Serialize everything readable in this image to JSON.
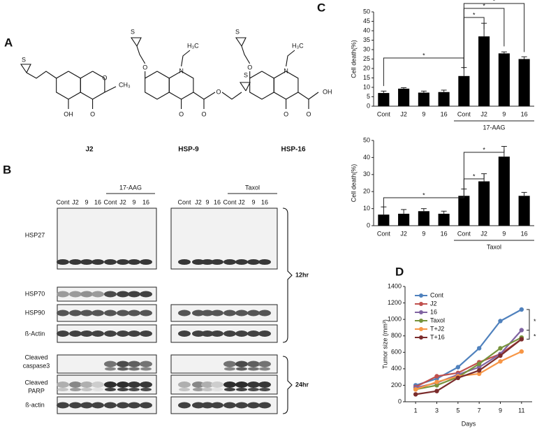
{
  "panels": {
    "A": {
      "label": "A",
      "compounds": [
        {
          "name": "J2",
          "atoms": [
            "S",
            "OH",
            "O",
            "O",
            "CH₃"
          ]
        },
        {
          "name": "HSP-9",
          "atoms": [
            "S",
            "O",
            "N",
            "H₃C",
            "O",
            "O",
            "O",
            "S"
          ]
        },
        {
          "name": "HSP-16",
          "atoms": [
            "S",
            "O",
            "N",
            "H₃C",
            "O",
            "O",
            "OH"
          ]
        }
      ]
    },
    "B": {
      "label": "B",
      "lanes": [
        "Cont",
        "J2",
        "9",
        "16",
        "Cont",
        "J2",
        "9",
        "16"
      ],
      "treatments": [
        "17-AAG",
        "Taxol"
      ],
      "rows": [
        "HSP27",
        "HSP70",
        "HSP90",
        "ß-Actin",
        [
          "Cleaved",
          "caspase3"
        ],
        [
          "Cleaved",
          "PARP"
        ],
        "ß-actin"
      ],
      "times": [
        "12hr",
        "24hr"
      ]
    },
    "C": {
      "label": "C"
    },
    "D": {
      "label": "D"
    }
  },
  "chart_data": [
    {
      "type": "bar",
      "ylabel": "Cell death(%)",
      "categories": [
        "Cont",
        "J2",
        "9",
        "16",
        "Cont",
        "J2",
        "9",
        "16"
      ],
      "values": [
        7,
        9.3,
        7.2,
        7.5,
        16,
        37,
        28,
        25
      ],
      "errors": [
        1,
        0.5,
        0.8,
        1,
        4.5,
        7,
        0.8,
        1.2
      ],
      "group_label": "17-AAG",
      "annotations": [
        "*",
        "*",
        "*",
        "*"
      ],
      "color": "#000000",
      "ylim": [
        0,
        50
      ],
      "yticks": [
        0,
        5,
        10,
        15,
        20,
        25,
        30,
        35,
        40,
        45,
        50
      ]
    },
    {
      "type": "bar",
      "ylabel": "Cell death(%)",
      "categories": [
        "Cont",
        "J2",
        "9",
        "16",
        "Cont",
        "J2",
        "9",
        "16"
      ],
      "values": [
        6.5,
        7,
        8.5,
        7,
        17.5,
        26,
        40.5,
        17.5
      ],
      "errors": [
        4.5,
        2.5,
        1.5,
        1.5,
        4,
        4.5,
        6,
        2
      ],
      "group_label": "Taxol",
      "annotations": [
        "*",
        "*",
        "*"
      ],
      "color": "#000000",
      "ylim": [
        0,
        50
      ],
      "yticks": [
        0,
        10,
        20,
        30,
        40,
        50
      ]
    },
    {
      "type": "line",
      "xlabel": "Days",
      "ylabel": "Tumor size (mm³)",
      "x": [
        1,
        3,
        5,
        7,
        9,
        11
      ],
      "xlim": [
        0,
        12
      ],
      "xticks": [
        1,
        3,
        5,
        7,
        9,
        11
      ],
      "ylim": [
        0,
        1400
      ],
      "yticks": [
        0,
        200,
        400,
        600,
        800,
        1000,
        1200,
        1400
      ],
      "legend": "upper left",
      "annotations": [
        "*",
        "*"
      ],
      "series": [
        {
          "name": "Cont",
          "color": "#4f81bd",
          "values": [
            200,
            280,
            420,
            650,
            980,
            1120
          ]
        },
        {
          "name": "J2",
          "color": "#c0504d",
          "values": [
            180,
            310,
            350,
            480,
            580,
            760
          ]
        },
        {
          "name": "16",
          "color": "#8064a2",
          "values": [
            170,
            230,
            330,
            420,
            580,
            870
          ]
        },
        {
          "name": "Taxol",
          "color": "#77933c",
          "values": [
            150,
            200,
            300,
            460,
            650,
            780
          ]
        },
        {
          "name": "T+J2",
          "color": "#f79646",
          "values": [
            150,
            240,
            310,
            340,
            490,
            610
          ]
        },
        {
          "name": "T+16",
          "color": "#7b2c2c",
          "values": [
            90,
            130,
            290,
            380,
            560,
            760
          ]
        }
      ]
    }
  ]
}
